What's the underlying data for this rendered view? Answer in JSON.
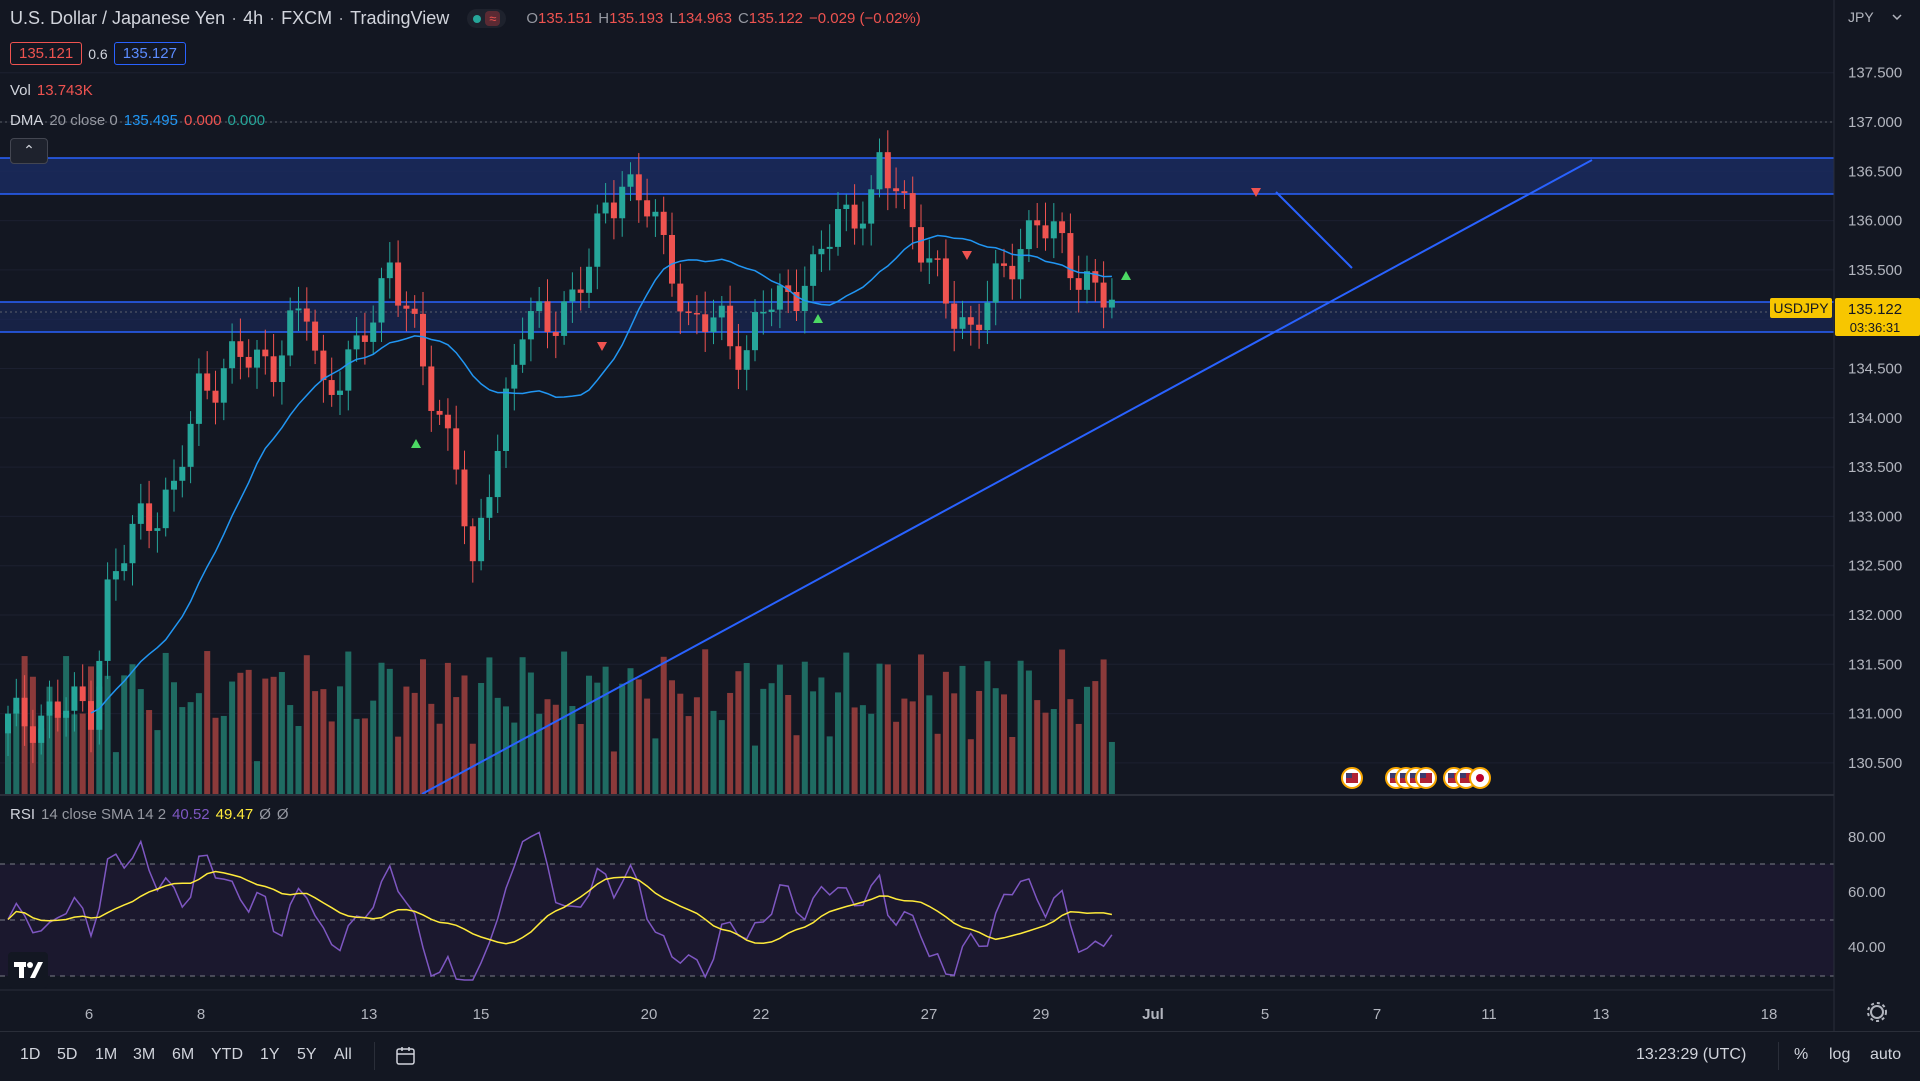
{
  "header": {
    "title": "U.S. Dollar / Japanese Yen",
    "interval": "4h",
    "exchange": "FXCM",
    "platform": "TradingView",
    "ohlc": {
      "o_label": "O",
      "o": "135.151",
      "h_label": "H",
      "h": "135.193",
      "l_label": "L",
      "l": "134.963",
      "c_label": "C",
      "c": "135.122",
      "change": "−0.029 (−0.02%)"
    },
    "bid": "135.121",
    "spread": "0.6",
    "ask": "135.127"
  },
  "indicators": {
    "vol_label": "Vol",
    "vol_value": "13.743K",
    "dma_label": "DMA",
    "dma_params": "20 close 0",
    "dma_value": "135.495",
    "dma_v2": "0.000",
    "dma_v3": "0.000",
    "rsi_label": "RSI",
    "rsi_params": "14 close SMA 14 2",
    "rsi_value": "40.52",
    "rsi_sma": "49.47",
    "rsi_extra1": "Ø",
    "rsi_extra2": "Ø"
  },
  "price_axis": {
    "currency": "JPY",
    "symbol_tag": "USDJPY",
    "last_price": "135.122",
    "countdown": "03:36:31"
  },
  "bottom_bar": {
    "timeframes": [
      "1D",
      "5D",
      "1M",
      "3M",
      "6M",
      "YTD",
      "1Y",
      "5Y",
      "All"
    ],
    "clock": "13:23:29 (UTC)",
    "percent": "%",
    "log": "log",
    "auto": "auto"
  },
  "colors": {
    "background": "#131722",
    "up": "#26a69a",
    "down": "#ef5350",
    "up_volume": "#1f6b62",
    "down_volume": "#8b3a3a",
    "dma_line": "#2196f3",
    "rsi_line": "#7e57c2",
    "rsi_sma": "#ffeb3b",
    "zone_line": "#2962ff",
    "last_price_tag": "#f7c600"
  },
  "chart_data": {
    "type": "candlestick",
    "symbol": "USDJPY",
    "interval": "4h",
    "y_price_range": [
      130.2,
      138.0
    ],
    "y_ticks": [
      "137.500",
      "137.000",
      "136.500",
      "136.000",
      "135.500",
      "135.000",
      "134.500",
      "134.000",
      "133.500",
      "133.000",
      "132.500",
      "132.000",
      "131.500",
      "131.000",
      "130.500"
    ],
    "x_ticks": [
      "6",
      "8",
      "13",
      "15",
      "20",
      "22",
      "27",
      "29",
      "Jul",
      "5",
      "7",
      "11",
      "13",
      "18"
    ],
    "resistance_zone": [
      136.3,
      136.65
    ],
    "support_zone": [
      134.88,
      135.18
    ],
    "trendline": {
      "from": [
        "Jun 15",
        130.3
      ],
      "to": [
        "Jul 12",
        136.6
      ]
    },
    "rsi": {
      "ticks": [
        "80.00",
        "60.00",
        "40.00"
      ],
      "upper": 70,
      "mid": 50,
      "lower": 30,
      "value": 40.52,
      "sma": 49.47
    },
    "last_price": 135.122
  }
}
